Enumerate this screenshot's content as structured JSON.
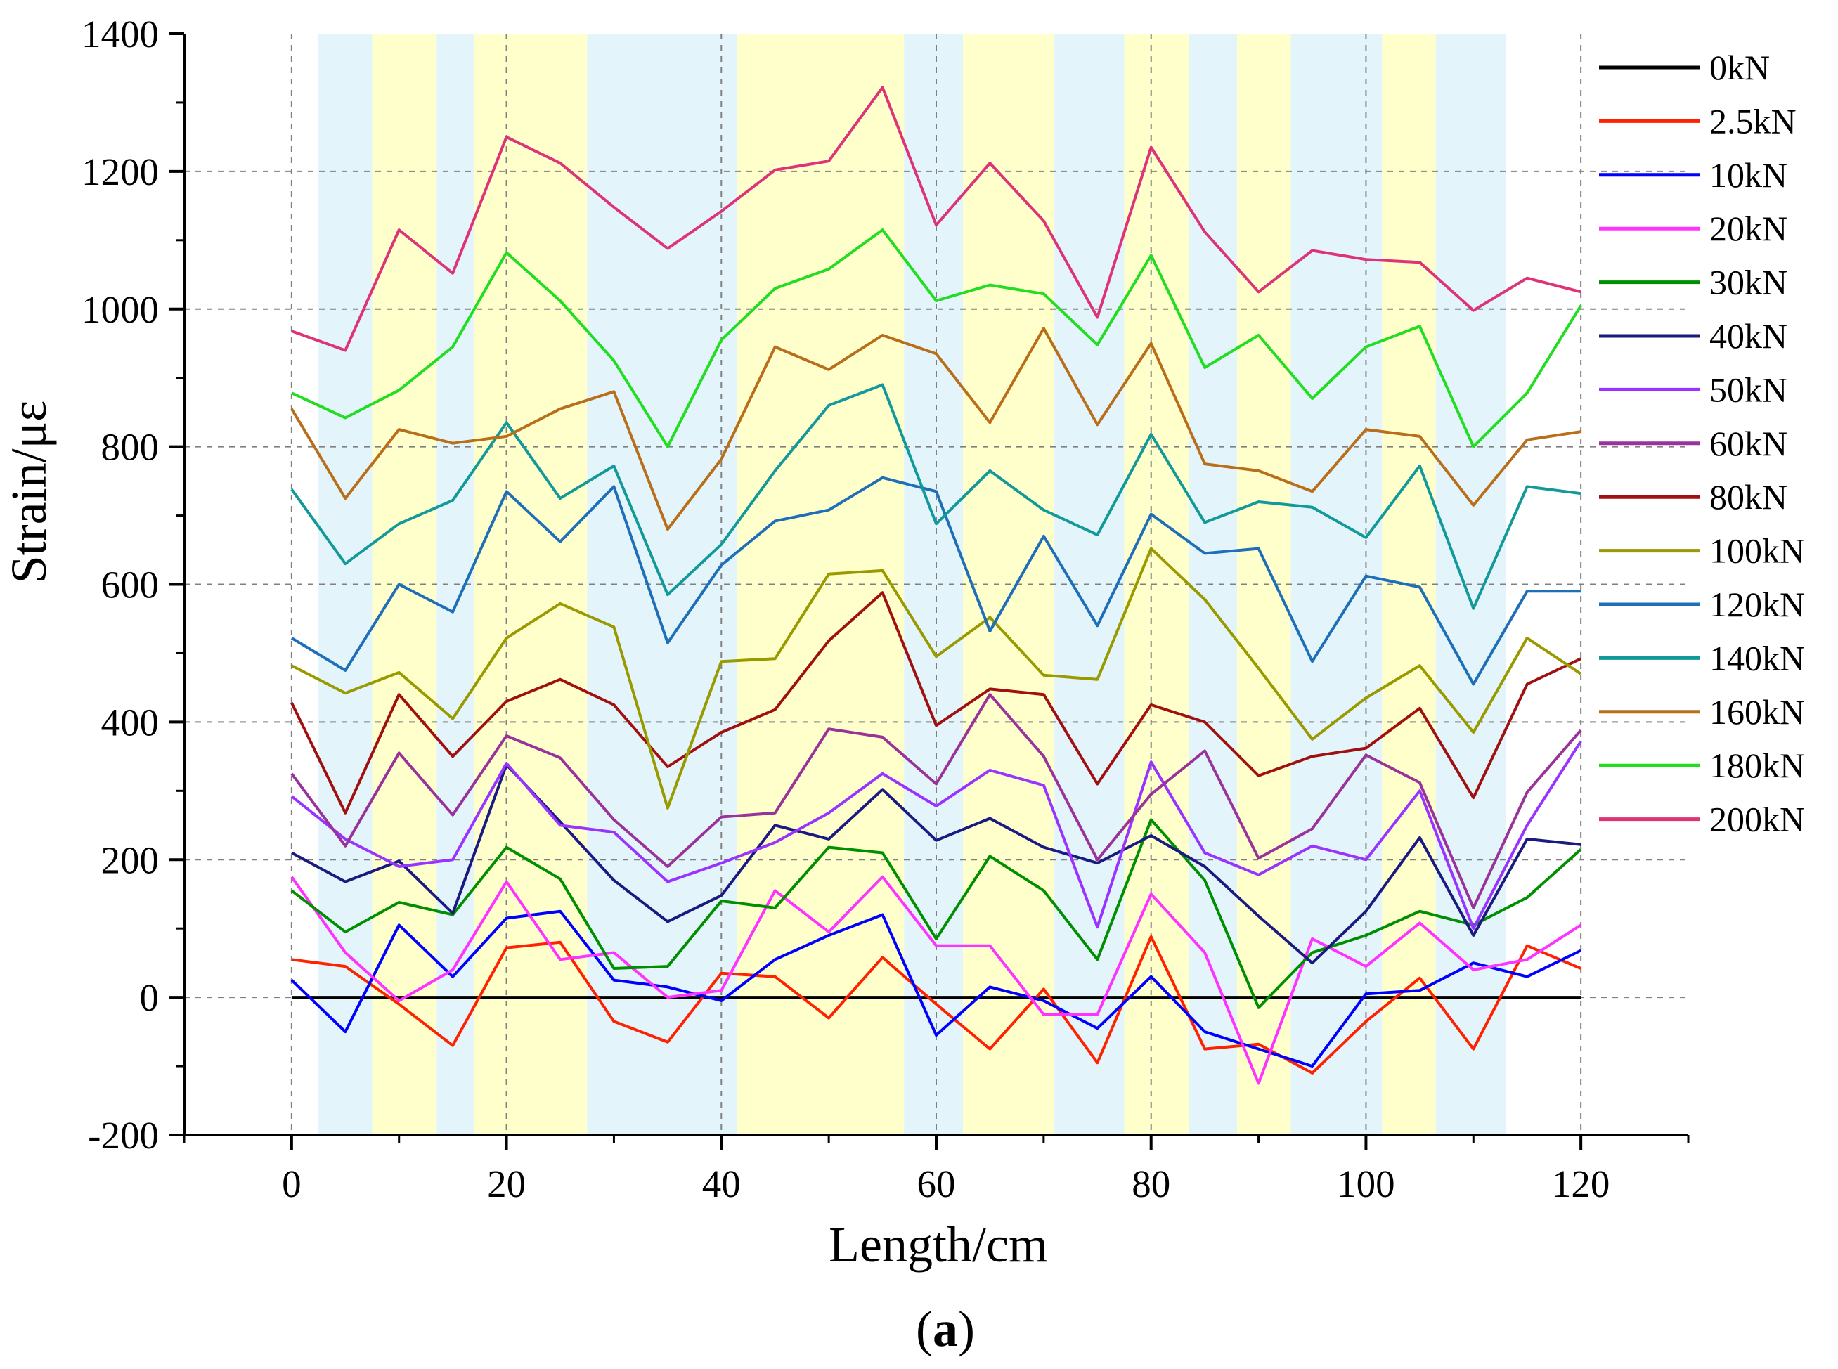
{
  "chart_data": {
    "type": "line",
    "title": "",
    "xlabel": "Length/cm",
    "ylabel": "Strain/με",
    "xlim": [
      -10,
      130
    ],
    "ylim": [
      -200,
      1400
    ],
    "xticks": [
      0,
      20,
      40,
      60,
      80,
      100,
      120
    ],
    "yticks": [
      -200,
      0,
      200,
      400,
      600,
      800,
      1000,
      1200,
      1400
    ],
    "xtick_labels": [
      "0",
      "20",
      "40",
      "60",
      "80",
      "100",
      "120"
    ],
    "ytick_labels": [
      "-200",
      "0",
      "200",
      "400",
      "600",
      "800",
      "1000",
      "1200",
      "1400"
    ],
    "grid": true,
    "legend_position": "right",
    "x": [
      0,
      5,
      10,
      15,
      20,
      25,
      30,
      35,
      40,
      45,
      50,
      55,
      60,
      65,
      70,
      75,
      80,
      85,
      90,
      95,
      100,
      105,
      110,
      115,
      120
    ],
    "bands": [
      {
        "from": 2.5,
        "to": 7.5,
        "color": "#e3f5fb"
      },
      {
        "from": 7.5,
        "to": 13.5,
        "color": "#ffffcc"
      },
      {
        "from": 13.5,
        "to": 17,
        "color": "#e3f5fb"
      },
      {
        "from": 17,
        "to": 27.5,
        "color": "#ffffcc"
      },
      {
        "from": 27.5,
        "to": 41.5,
        "color": "#e3f5fb"
      },
      {
        "from": 41.5,
        "to": 57,
        "color": "#ffffcc"
      },
      {
        "from": 57,
        "to": 62.5,
        "color": "#e3f5fb"
      },
      {
        "from": 62.5,
        "to": 71,
        "color": "#ffffcc"
      },
      {
        "from": 71,
        "to": 77.5,
        "color": "#e3f5fb"
      },
      {
        "from": 77.5,
        "to": 83.5,
        "color": "#ffffcc"
      },
      {
        "from": 83.5,
        "to": 88,
        "color": "#e3f5fb"
      },
      {
        "from": 88,
        "to": 93,
        "color": "#ffffcc"
      },
      {
        "from": 93,
        "to": 101.5,
        "color": "#e3f5fb"
      },
      {
        "from": 101.5,
        "to": 106.5,
        "color": "#ffffcc"
      },
      {
        "from": 106.5,
        "to": 113,
        "color": "#e3f5fb"
      }
    ],
    "series": [
      {
        "name": "0kN",
        "color": "#000000",
        "values": [
          0,
          0,
          0,
          0,
          0,
          0,
          0,
          0,
          0,
          0,
          0,
          0,
          0,
          0,
          0,
          0,
          0,
          0,
          0,
          0,
          0,
          0,
          0,
          0,
          0
        ]
      },
      {
        "name": "2.5kN",
        "color": "#ff2200",
        "values": [
          55,
          45,
          -10,
          -70,
          72,
          80,
          -35,
          -65,
          35,
          30,
          -30,
          58,
          -10,
          -75,
          12,
          -95,
          88,
          -75,
          -68,
          -110,
          -35,
          28,
          -75,
          75,
          42
        ]
      },
      {
        "name": "10kN",
        "color": "#0000ff",
        "values": [
          25,
          -50,
          105,
          30,
          115,
          125,
          25,
          15,
          -5,
          55,
          90,
          120,
          -55,
          15,
          -5,
          -45,
          30,
          -50,
          -75,
          -100,
          5,
          10,
          50,
          30,
          68
        ]
      },
      {
        "name": "20kN",
        "color": "#ff33ff",
        "values": [
          175,
          65,
          -5,
          40,
          168,
          55,
          65,
          0,
          10,
          155,
          95,
          175,
          75,
          75,
          -25,
          -25,
          150,
          65,
          -125,
          85,
          45,
          108,
          40,
          55,
          105
        ]
      },
      {
        "name": "30kN",
        "color": "#008f00",
        "values": [
          155,
          95,
          138,
          120,
          218,
          172,
          42,
          45,
          140,
          130,
          218,
          210,
          85,
          205,
          155,
          55,
          258,
          170,
          -15,
          65,
          90,
          125,
          105,
          145,
          215
        ]
      },
      {
        "name": "40kN",
        "color": "#1a1a80",
        "values": [
          210,
          168,
          198,
          122,
          338,
          255,
          170,
          110,
          148,
          250,
          230,
          302,
          228,
          260,
          218,
          195,
          235,
          190,
          118,
          50,
          125,
          232,
          90,
          230,
          222
        ]
      },
      {
        "name": "50kN",
        "color": "#9933ff",
        "values": [
          292,
          230,
          190,
          200,
          340,
          250,
          240,
          168,
          195,
          225,
          268,
          325,
          278,
          330,
          308,
          102,
          342,
          210,
          178,
          220,
          200,
          300,
          100,
          250,
          372
        ]
      },
      {
        "name": "60kN",
        "color": "#993399",
        "values": [
          325,
          220,
          355,
          265,
          380,
          348,
          258,
          190,
          262,
          268,
          390,
          378,
          310,
          440,
          350,
          200,
          295,
          358,
          202,
          245,
          352,
          312,
          130,
          298,
          388
        ]
      },
      {
        "name": "80kN",
        "color": "#a01010",
        "values": [
          428,
          268,
          440,
          350,
          430,
          462,
          425,
          335,
          385,
          418,
          518,
          588,
          395,
          448,
          440,
          310,
          425,
          400,
          322,
          350,
          362,
          420,
          290,
          455,
          492
        ]
      },
      {
        "name": "100kN",
        "color": "#999900",
        "values": [
          482,
          442,
          472,
          405,
          522,
          572,
          538,
          275,
          488,
          492,
          615,
          620,
          495,
          552,
          468,
          462,
          652,
          578,
          478,
          375,
          435,
          482,
          385,
          522,
          470
        ]
      },
      {
        "name": "120kN",
        "color": "#1f6fb8",
        "values": [
          522,
          475,
          600,
          560,
          735,
          662,
          742,
          515,
          628,
          692,
          708,
          755,
          735,
          532,
          670,
          540,
          702,
          645,
          652,
          488,
          612,
          596,
          455,
          590,
          590
        ]
      },
      {
        "name": "140kN",
        "color": "#139999",
        "values": [
          738,
          630,
          688,
          722,
          835,
          725,
          772,
          585,
          658,
          765,
          860,
          890,
          688,
          765,
          708,
          672,
          818,
          690,
          720,
          712,
          668,
          772,
          565,
          742,
          732
        ]
      },
      {
        "name": "160kN",
        "color": "#b86e1a",
        "values": [
          855,
          725,
          825,
          805,
          815,
          855,
          880,
          680,
          782,
          945,
          912,
          962,
          935,
          835,
          972,
          832,
          950,
          775,
          765,
          735,
          825,
          815,
          715,
          810,
          822
        ]
      },
      {
        "name": "180kN",
        "color": "#22dd22",
        "values": [
          878,
          842,
          882,
          945,
          1082,
          1012,
          925,
          800,
          955,
          1030,
          1058,
          1115,
          1012,
          1035,
          1022,
          948,
          1078,
          915,
          962,
          870,
          945,
          975,
          800,
          878,
          1005
        ]
      },
      {
        "name": "200kN",
        "color": "#dd3377",
        "values": [
          968,
          940,
          1115,
          1052,
          1250,
          1212,
          1148,
          1088,
          1142,
          1202,
          1215,
          1322,
          1122,
          1212,
          1128,
          988,
          1235,
          1112,
          1025,
          1085,
          1072,
          1068,
          998,
          1045,
          1025
        ]
      }
    ]
  },
  "caption": {
    "open": "(",
    "letter": "a",
    "close": ")"
  }
}
